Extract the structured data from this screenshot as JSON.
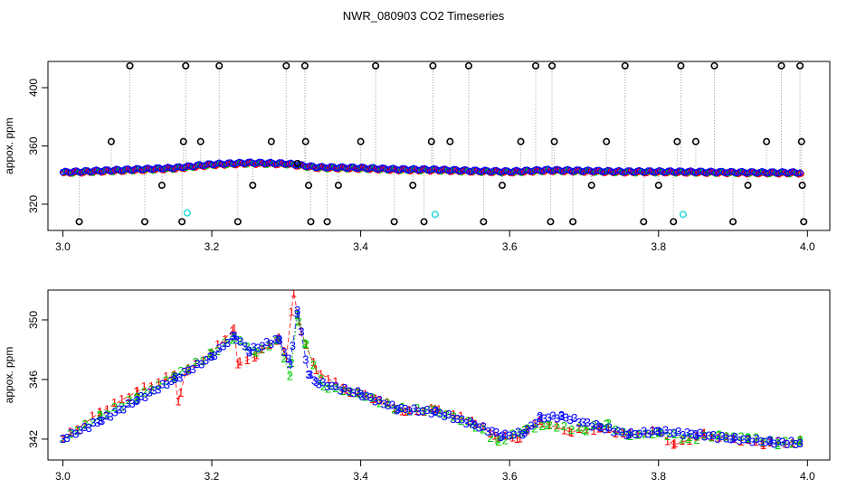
{
  "title": "NWR_080903  CO2 Timeseries",
  "colors": {
    "red": "#ff0000",
    "green": "#00cc00",
    "blue": "#0000ff",
    "black": "#000000",
    "cyan": "#33dddd",
    "dotted": "#999999"
  },
  "chart_data": [
    {
      "type": "scatter",
      "title": "NWR_080903  CO2 Timeseries",
      "xlabel": "",
      "ylabel": "appox. ppm",
      "xlim": [
        2.98,
        4.03
      ],
      "ylim": [
        302,
        418
      ],
      "xticks": [
        3.0,
        3.2,
        3.4,
        3.6,
        3.8,
        4.0
      ],
      "xtick_labels": [
        "3.0",
        "3.2",
        "3.4",
        "3.6",
        "3.8",
        "4.0"
      ],
      "yticks": [
        320,
        360,
        400
      ],
      "ytick_labels": [
        "320",
        "360",
        "400"
      ],
      "grid": false,
      "series": [
        {
          "symbol": "o",
          "color": "#0000ff",
          "values": [
            [
              3.0,
              342.0
            ],
            [
              3.05,
              343.0
            ],
            [
              3.1,
              344.0
            ],
            [
              3.15,
              345.0
            ],
            [
              3.2,
              347.5
            ],
            [
              3.25,
              348.5
            ],
            [
              3.3,
              348.0
            ],
            [
              3.34,
              345.5
            ],
            [
              3.4,
              345.0
            ],
            [
              3.45,
              344.0
            ],
            [
              3.5,
              343.8
            ],
            [
              3.55,
              343.0
            ],
            [
              3.6,
              342.5
            ],
            [
              3.65,
              343.5
            ],
            [
              3.7,
              343.0
            ],
            [
              3.75,
              342.5
            ],
            [
              3.8,
              342.5
            ],
            [
              3.85,
              342.3
            ],
            [
              3.9,
              342.0
            ],
            [
              3.95,
              341.8
            ],
            [
              3.99,
              341.8
            ]
          ]
        },
        {
          "symbol": "o",
          "color": "#000000",
          "values": [
            [
              3.022,
              308
            ],
            [
              3.065,
              363
            ],
            [
              3.09,
              415
            ],
            [
              3.11,
              308
            ],
            [
              3.133,
              333
            ],
            [
              3.16,
              308
            ],
            [
              3.162,
              363
            ],
            [
              3.165,
              415
            ],
            [
              3.185,
              363
            ],
            [
              3.21,
              415
            ],
            [
              3.235,
              308
            ],
            [
              3.255,
              333
            ],
            [
              3.28,
              363
            ],
            [
              3.3,
              415
            ],
            [
              3.315,
              348
            ],
            [
              3.325,
              415
            ],
            [
              3.326,
              363
            ],
            [
              3.33,
              333
            ],
            [
              3.333,
              308
            ],
            [
              3.355,
              308
            ],
            [
              3.37,
              333
            ],
            [
              3.4,
              363
            ],
            [
              3.42,
              415
            ],
            [
              3.445,
              308
            ],
            [
              3.47,
              333
            ],
            [
              3.485,
              308
            ],
            [
              3.495,
              363
            ],
            [
              3.497,
              415
            ],
            [
              3.52,
              363
            ],
            [
              3.545,
              415
            ],
            [
              3.565,
              308
            ],
            [
              3.59,
              333
            ],
            [
              3.615,
              363
            ],
            [
              3.635,
              415
            ],
            [
              3.655,
              308
            ],
            [
              3.657,
              415
            ],
            [
              3.66,
              363
            ],
            [
              3.685,
              308
            ],
            [
              3.71,
              333
            ],
            [
              3.73,
              363
            ],
            [
              3.755,
              415
            ],
            [
              3.78,
              308
            ],
            [
              3.8,
              333
            ],
            [
              3.82,
              308
            ],
            [
              3.825,
              363
            ],
            [
              3.83,
              415
            ],
            [
              3.85,
              363
            ],
            [
              3.875,
              415
            ],
            [
              3.9,
              308
            ],
            [
              3.92,
              333
            ],
            [
              3.945,
              363
            ],
            [
              3.965,
              415
            ],
            [
              3.99,
              415
            ],
            [
              3.992,
              363
            ],
            [
              3.993,
              333
            ],
            [
              3.995,
              308
            ]
          ]
        },
        {
          "symbol": "o",
          "color": "#33dddd",
          "values": [
            [
              3.167,
              314
            ],
            [
              3.5,
              313
            ],
            [
              3.833,
              313
            ]
          ]
        }
      ]
    },
    {
      "type": "scatter",
      "xlabel": "",
      "ylabel": "appox. ppm",
      "xlim": [
        2.98,
        4.03
      ],
      "ylim": [
        340.6,
        352.0
      ],
      "xticks": [
        3.0,
        3.2,
        3.4,
        3.6,
        3.8,
        4.0
      ],
      "xtick_labels": [
        "3.0",
        "3.2",
        "3.4",
        "3.6",
        "3.8",
        "4.0"
      ],
      "yticks": [
        342,
        346,
        350
      ],
      "ytick_labels": [
        "342",
        "346",
        "350"
      ],
      "grid": false,
      "series": [
        {
          "symbol": "1",
          "color": "#ff0000",
          "values": [
            [
              3.0,
              342.0
            ],
            [
              3.05,
              343.8
            ],
            [
              3.1,
              345.2
            ],
            [
              3.15,
              346.3
            ],
            [
              3.155,
              344.5
            ],
            [
              3.165,
              346.5
            ],
            [
              3.2,
              347.8
            ],
            [
              3.23,
              349.4
            ],
            [
              3.235,
              347.0
            ],
            [
              3.26,
              347.6
            ],
            [
              3.29,
              348.8
            ],
            [
              3.3,
              347.4
            ],
            [
              3.31,
              351.8
            ],
            [
              3.32,
              349.2
            ],
            [
              3.34,
              346.6
            ],
            [
              3.38,
              345.3
            ],
            [
              3.42,
              344.7
            ],
            [
              3.46,
              343.8
            ],
            [
              3.5,
              344.0
            ],
            [
              3.55,
              343.2
            ],
            [
              3.58,
              342.2
            ],
            [
              3.61,
              342.0
            ],
            [
              3.64,
              343.2
            ],
            [
              3.68,
              342.5
            ],
            [
              3.72,
              342.7
            ],
            [
              3.76,
              342.3
            ],
            [
              3.8,
              342.5
            ],
            [
              3.82,
              341.6
            ],
            [
              3.86,
              342.3
            ],
            [
              3.9,
              342.0
            ],
            [
              3.94,
              341.7
            ],
            [
              3.99,
              341.8
            ]
          ]
        },
        {
          "symbol": "2",
          "color": "#00cc00",
          "values": [
            [
              3.0,
              342.0
            ],
            [
              3.05,
              343.5
            ],
            [
              3.1,
              344.8
            ],
            [
              3.15,
              346.2
            ],
            [
              3.2,
              347.7
            ],
            [
              3.23,
              348.8
            ],
            [
              3.26,
              347.8
            ],
            [
              3.29,
              348.6
            ],
            [
              3.305,
              346.2
            ],
            [
              3.315,
              350.3
            ],
            [
              3.325,
              348.4
            ],
            [
              3.35,
              345.5
            ],
            [
              3.4,
              345.0
            ],
            [
              3.45,
              344.0
            ],
            [
              3.5,
              343.9
            ],
            [
              3.55,
              343.0
            ],
            [
              3.585,
              341.8
            ],
            [
              3.62,
              342.6
            ],
            [
              3.65,
              342.9
            ],
            [
              3.7,
              342.6
            ],
            [
              3.73,
              343.0
            ],
            [
              3.76,
              342.2
            ],
            [
              3.8,
              342.4
            ],
            [
              3.84,
              342.0
            ],
            [
              3.88,
              342.2
            ],
            [
              3.92,
              342.1
            ],
            [
              3.96,
              341.7
            ],
            [
              3.99,
              341.8
            ]
          ]
        },
        {
          "symbol": "3",
          "color": "#0000ff",
          "values": [
            [
              3.0,
              342.0
            ],
            [
              3.05,
              343.2
            ],
            [
              3.1,
              344.6
            ],
            [
              3.15,
              346.0
            ],
            [
              3.2,
              347.5
            ],
            [
              3.23,
              348.9
            ],
            [
              3.25,
              347.9
            ],
            [
              3.29,
              348.7
            ],
            [
              3.305,
              347.0
            ],
            [
              3.315,
              350.6
            ],
            [
              3.33,
              346.3
            ],
            [
              3.34,
              345.8
            ],
            [
              3.4,
              345.0
            ],
            [
              3.45,
              344.0
            ],
            [
              3.5,
              343.8
            ],
            [
              3.55,
              343.0
            ],
            [
              3.59,
              342.2
            ],
            [
              3.62,
              342.4
            ],
            [
              3.64,
              343.4
            ],
            [
              3.67,
              343.5
            ],
            [
              3.72,
              342.8
            ],
            [
              3.76,
              342.3
            ],
            [
              3.8,
              342.5
            ],
            [
              3.85,
              342.3
            ],
            [
              3.9,
              342.0
            ],
            [
              3.95,
              341.8
            ],
            [
              3.99,
              341.7
            ]
          ]
        }
      ]
    }
  ]
}
